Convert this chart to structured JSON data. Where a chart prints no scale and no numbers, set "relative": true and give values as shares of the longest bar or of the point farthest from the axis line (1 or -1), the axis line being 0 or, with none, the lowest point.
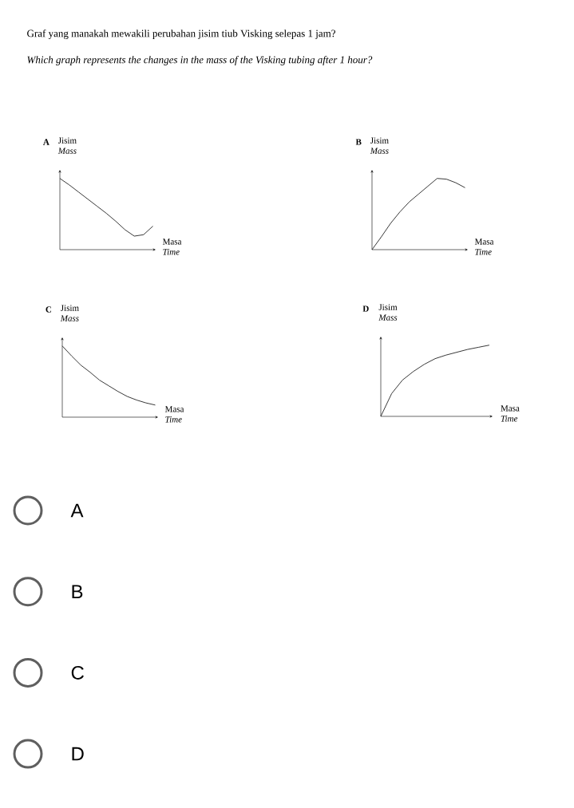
{
  "chart_data": [
    {
      "type": "other",
      "title": "Graf yang manakah mewakili perubahan jisim tiub Visking selepas 1 jam?",
      "subtitle": "Which graph represents the changes in the mass of the Visking tubing after 1 hour?"
    },
    {
      "type": "line",
      "title": "A",
      "ylabel": "Jisim *Mass*",
      "xlabel": "Masa *Time*",
      "relative": true,
      "color": "#222222",
      "categories": [
        null,
        null,
        null,
        null,
        null,
        null,
        null,
        null,
        null,
        null,
        null
      ],
      "values": [
        1,
        0.91,
        0.81,
        0.71,
        0.61,
        0.51,
        0.4,
        0.28,
        0.19,
        0.21,
        0.33
      ]
    },
    {
      "type": "line",
      "title": "B",
      "ylabel": "Jisim *Mass*",
      "xlabel": "Masa *Time*",
      "relative": true,
      "color": "#222222",
      "categories": [
        null,
        null,
        null,
        null,
        null,
        null,
        null,
        null,
        null,
        null,
        null
      ],
      "values": [
        0,
        0.18,
        0.37,
        0.53,
        0.67,
        0.78,
        0.89,
        1,
        0.99,
        0.94,
        0.87
      ]
    },
    {
      "type": "line",
      "title": "C",
      "ylabel": "Jisim *Mass*",
      "xlabel": "Masa *Time*",
      "relative": true,
      "color": "#222222",
      "categories": [
        null,
        null,
        null,
        null,
        null,
        null,
        null,
        null,
        null,
        null,
        null
      ],
      "values": [
        1,
        0.86,
        0.73,
        0.63,
        0.52,
        0.44,
        0.36,
        0.29,
        0.24,
        0.2,
        0.17
      ]
    },
    {
      "type": "line",
      "title": "D",
      "ylabel": "Jisim *Mass*",
      "xlabel": "Masa *Time*",
      "relative": true,
      "color": "#222222",
      "categories": [
        null,
        null,
        null,
        null,
        null,
        null,
        null,
        null,
        null,
        null,
        null
      ],
      "values": [
        0,
        0.32,
        0.51,
        0.63,
        0.73,
        0.81,
        0.86,
        0.9,
        0.94,
        0.97,
        1
      ]
    },
    {
      "type": "other",
      "annotations": [
        "A",
        "B",
        "C",
        "D"
      ]
    }
  ]
}
